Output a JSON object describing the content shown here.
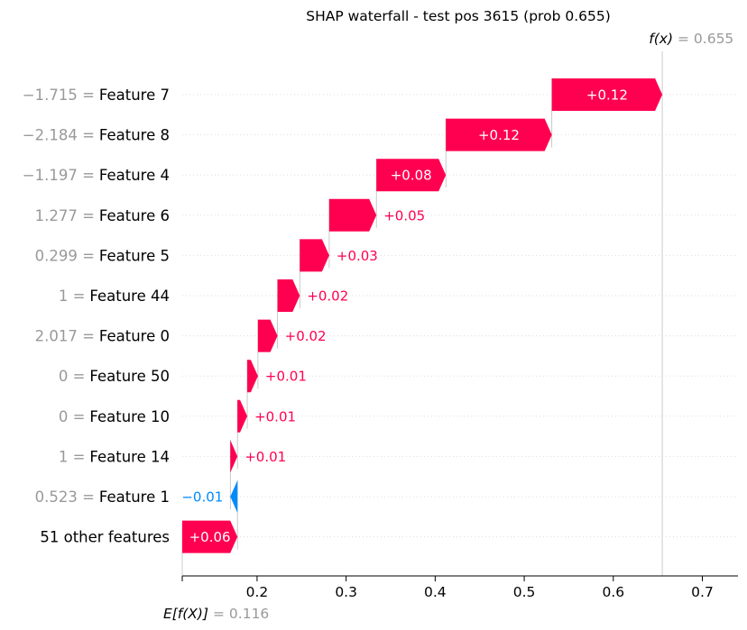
{
  "chart_data": {
    "type": "waterfall",
    "title": "SHAP waterfall - test pos 3615 (prob 0.655)",
    "fx_label": "f(x)",
    "fx_value_text": "= 0.655",
    "fx": 0.655,
    "ex_label": "E[f(X)]",
    "ex_value_text": "= 0.116",
    "base_value": 0.116,
    "xlim": [
      0.116,
      0.74
    ],
    "xticks": [
      0.2,
      0.3,
      0.4,
      0.5,
      0.6,
      0.7
    ],
    "xtick_labels": [
      "0.2",
      "0.3",
      "0.4",
      "0.5",
      "0.6",
      "0.7"
    ],
    "grid": "dotted horizontal guides",
    "features": [
      {
        "value_text": "−1.715 =",
        "name": "Feature 7",
        "start": 0.531,
        "end": 0.655,
        "label": "+0.12",
        "sign": "pos"
      },
      {
        "value_text": "−2.184 =",
        "name": "Feature 8",
        "start": 0.412,
        "end": 0.531,
        "label": "+0.12",
        "sign": "pos"
      },
      {
        "value_text": "−1.197 =",
        "name": "Feature 4",
        "start": 0.334,
        "end": 0.412,
        "label": "+0.08",
        "sign": "pos"
      },
      {
        "value_text": "1.277 =",
        "name": "Feature 6",
        "start": 0.281,
        "end": 0.334,
        "label": "+0.05",
        "sign": "pos"
      },
      {
        "value_text": "0.299 =",
        "name": "Feature 5",
        "start": 0.248,
        "end": 0.281,
        "label": "+0.03",
        "sign": "pos"
      },
      {
        "value_text": "1 =",
        "name": "Feature 44",
        "start": 0.223,
        "end": 0.248,
        "label": "+0.02",
        "sign": "pos"
      },
      {
        "value_text": "2.017 =",
        "name": "Feature 0",
        "start": 0.201,
        "end": 0.223,
        "label": "+0.02",
        "sign": "pos"
      },
      {
        "value_text": "0 =",
        "name": "Feature 50",
        "start": 0.189,
        "end": 0.201,
        "label": "+0.01",
        "sign": "pos"
      },
      {
        "value_text": "0 =",
        "name": "Feature 10",
        "start": 0.178,
        "end": 0.189,
        "label": "+0.01",
        "sign": "pos"
      },
      {
        "value_text": "1 =",
        "name": "Feature 14",
        "start": 0.17,
        "end": 0.178,
        "label": "+0.01",
        "sign": "pos"
      },
      {
        "value_text": "0.523 =",
        "name": "Feature 1",
        "start": 0.178,
        "end": 0.17,
        "label": "−0.01",
        "sign": "neg"
      },
      {
        "value_text": "",
        "name": "51 other features",
        "start": 0.116,
        "end": 0.178,
        "label": "+0.06",
        "sign": "pos"
      }
    ],
    "colors": {
      "positive": "#ff0051",
      "negative": "#008bfb",
      "value_text": "#999999",
      "guide": "#cccccc"
    }
  }
}
